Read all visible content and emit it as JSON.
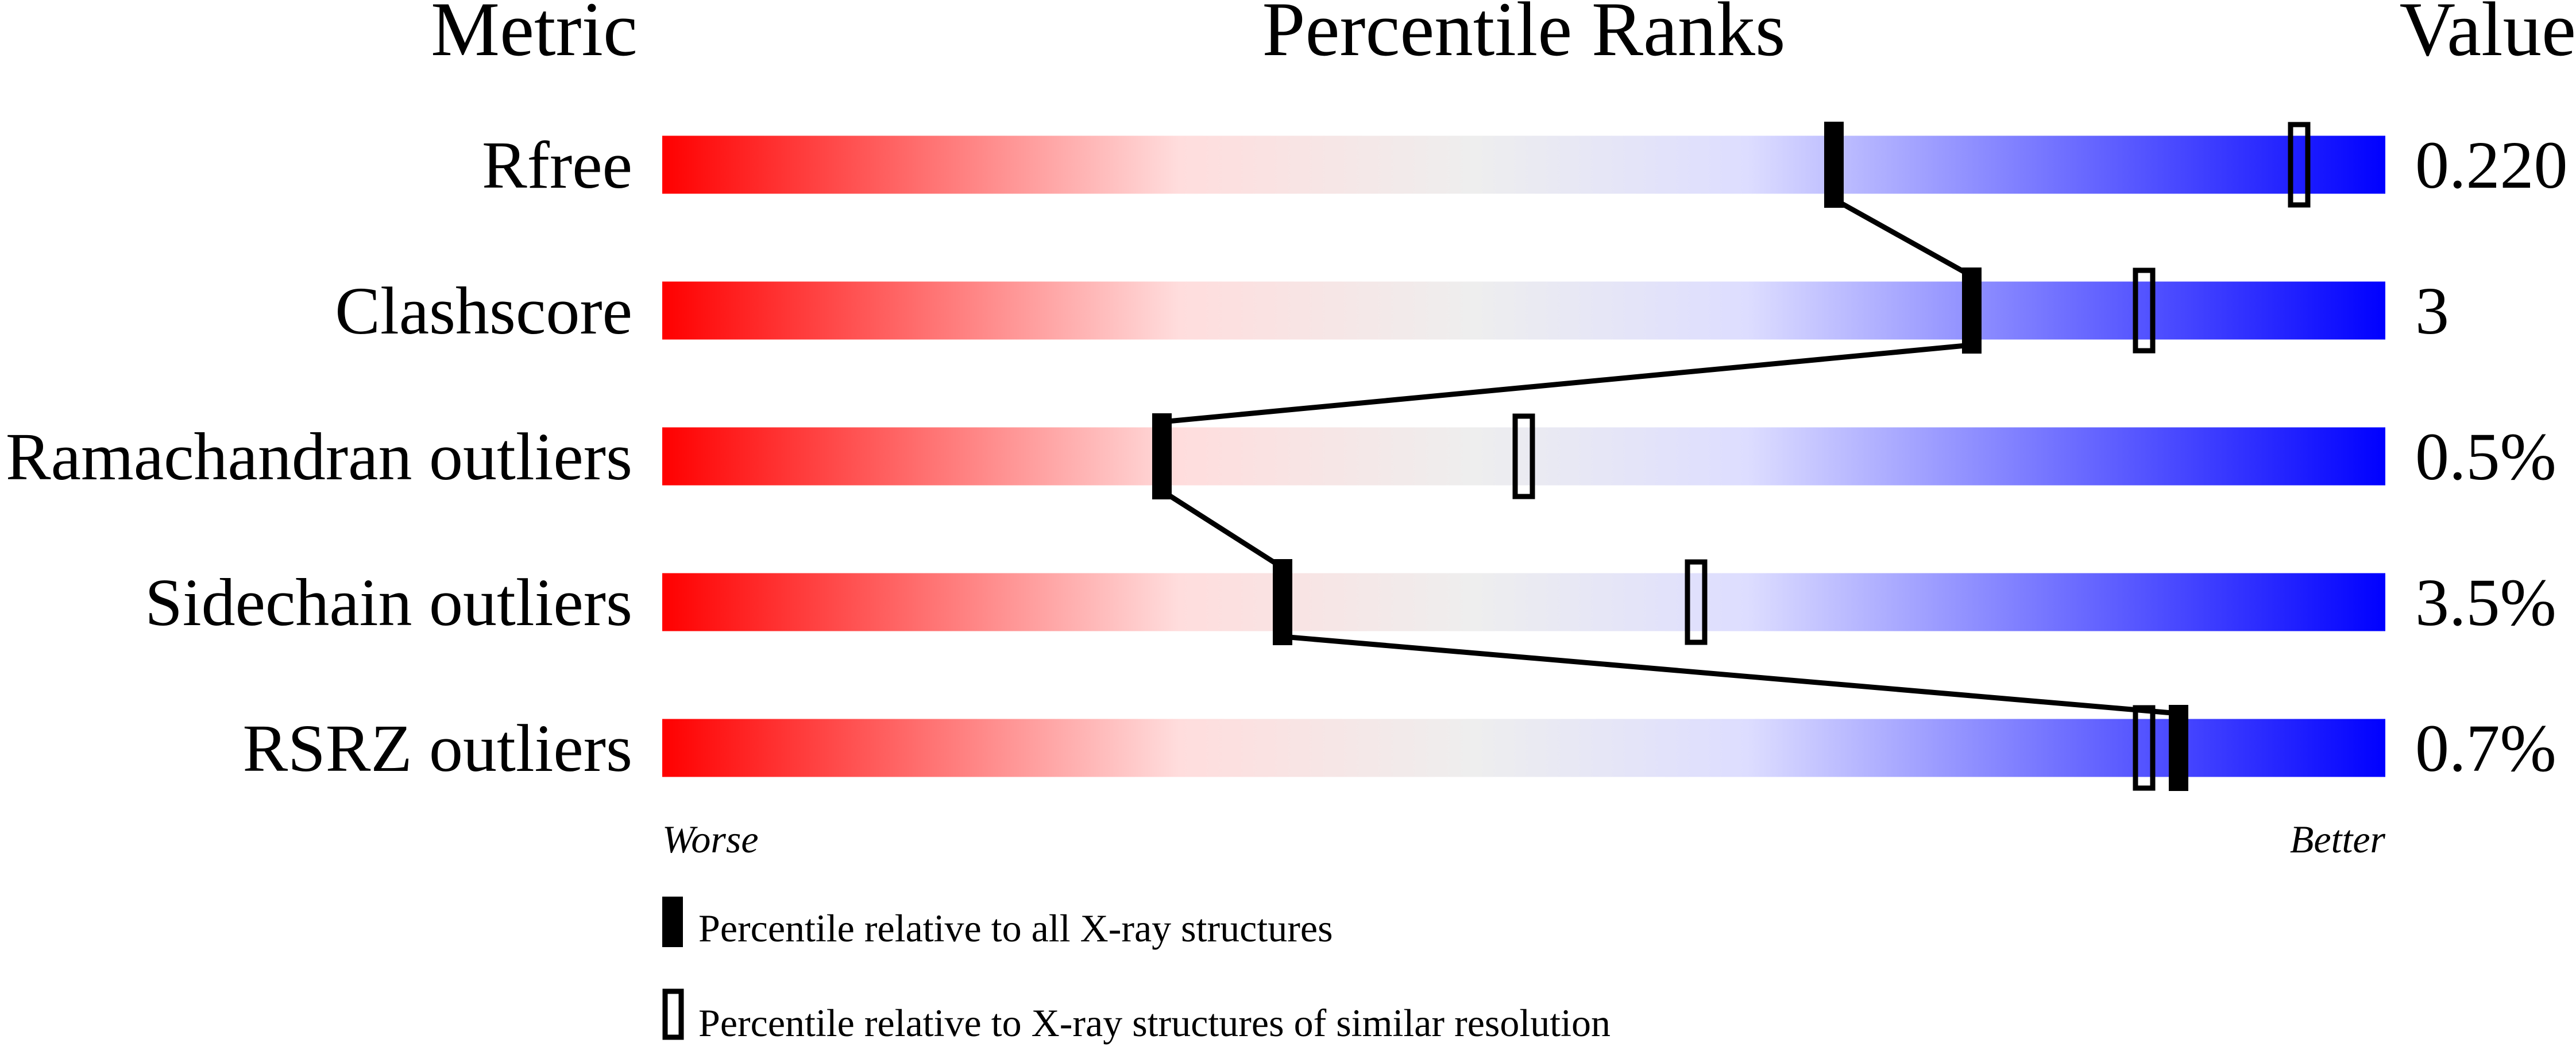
{
  "chart_data": {
    "type": "percentile-bar",
    "headers": {
      "metric": "Metric",
      "ranks": "Percentile Ranks",
      "value": "Value"
    },
    "xlim": [
      0,
      100
    ],
    "axis_ends": {
      "left": "Worse",
      "right": "Better"
    },
    "gradient_colors": [
      "#ff0000",
      "#ffdddd",
      "#eeeeee",
      "#ddddff",
      "#0000ff"
    ],
    "rows": [
      {
        "metric": "Rfree",
        "value": "0.220",
        "percentile_all": 68,
        "percentile_similar": 95
      },
      {
        "metric": "Clashscore",
        "value": "3",
        "percentile_all": 76,
        "percentile_similar": 86
      },
      {
        "metric": "Ramachandran outliers",
        "value": "0.5%",
        "percentile_all": 29,
        "percentile_similar": 50
      },
      {
        "metric": "Sidechain outliers",
        "value": "3.5%",
        "percentile_all": 36,
        "percentile_similar": 60
      },
      {
        "metric": "RSRZ outliers",
        "value": "0.7%",
        "percentile_all": 88,
        "percentile_similar": 86
      }
    ],
    "legend": [
      {
        "marker": "filled",
        "label": "Percentile relative to all X-ray structures"
      },
      {
        "marker": "open",
        "label": "Percentile relative to X-ray structures of similar resolution"
      }
    ]
  }
}
